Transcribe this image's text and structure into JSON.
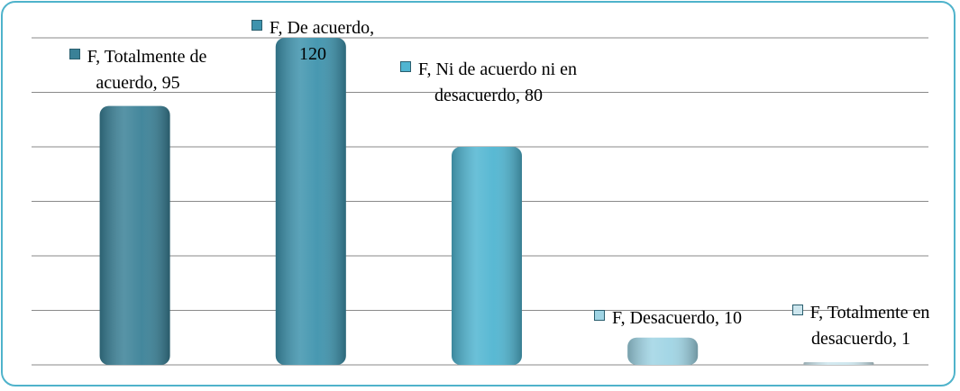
{
  "chart_data": {
    "type": "bar",
    "series": [
      {
        "name": "F",
        "colors": [
          "#3a8197",
          "#3e93ad",
          "#50b5d1",
          "#9fd4e4",
          "#cde6ee"
        ],
        "values": [
          95,
          120,
          80,
          10,
          1
        ]
      }
    ],
    "categories": [
      "Totalmente de acuerdo",
      "De acuerdo",
      "Ni de acuerdo ni en desacuerdo",
      "Desacuerdo",
      "Totalmente en desacuerdo"
    ],
    "ylim": [
      0,
      120
    ],
    "yticks": [
      0,
      20,
      40,
      60,
      80,
      100,
      120
    ],
    "grid": true
  }
}
